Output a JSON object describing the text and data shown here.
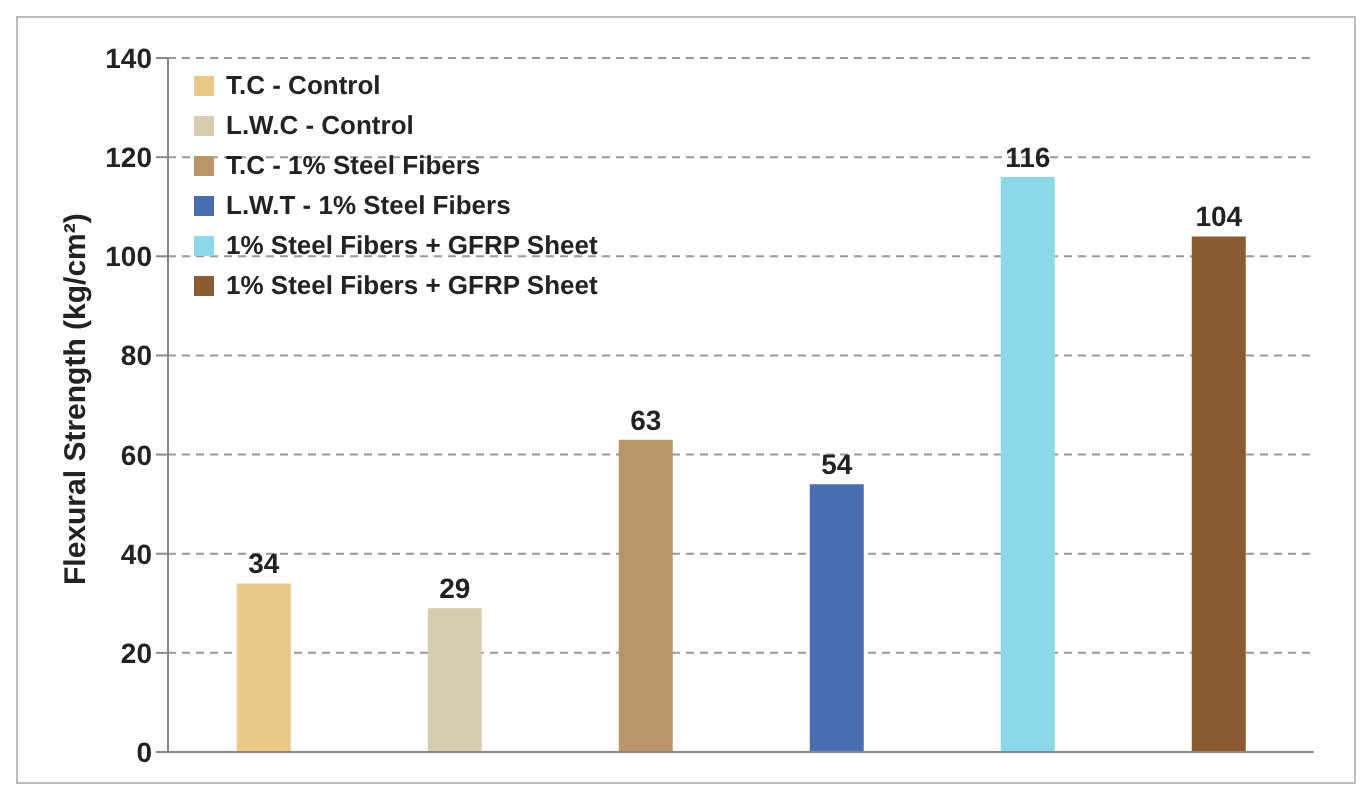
{
  "chart_data": {
    "type": "bar",
    "ylabel": "Flexural Strength (kg/cm²)",
    "categories": [
      null,
      null,
      null,
      null,
      null,
      null
    ],
    "series": [
      {
        "name": "T.C - Control",
        "color": "#e8c98a",
        "values": [
          34,
          null,
          null,
          null,
          null,
          null
        ]
      },
      {
        "name": "L.W.C - Control",
        "color": "#d8ccb0",
        "values": [
          null,
          29,
          null,
          null,
          null,
          null
        ]
      },
      {
        "name": "T.C - 1% Steel Fibers",
        "color": "#b8966a",
        "values": [
          null,
          null,
          63,
          null,
          null,
          null
        ]
      },
      {
        "name": "L.W.T - 1% Steel Fibers",
        "color": "#4a6cb0",
        "values": [
          null,
          null,
          null,
          54,
          null,
          null
        ]
      },
      {
        "name": "1% Steel Fibers + GFRP Sheet",
        "color": "#8ad8e8",
        "values": [
          null,
          null,
          null,
          null,
          116,
          null
        ]
      },
      {
        "name": "1% Steel Fibers + GFRP Sheet",
        "color": "#8a5a30",
        "values": [
          null,
          null,
          null,
          null,
          null,
          104
        ]
      }
    ],
    "ylim": [
      0,
      140
    ],
    "yticks": [
      0,
      20,
      40,
      60,
      80,
      100,
      120,
      140
    ],
    "grid": "y",
    "legend": "top left",
    "data_labels": true
  }
}
